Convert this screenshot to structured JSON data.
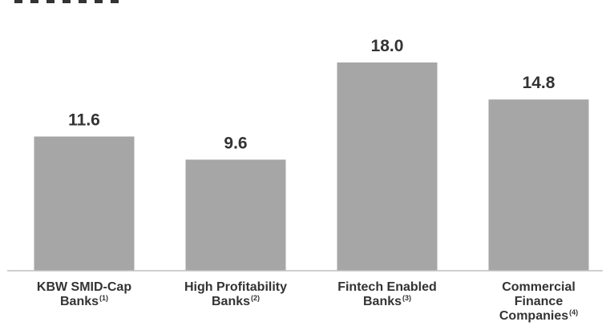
{
  "chart_data": {
    "type": "bar",
    "categories": [
      {
        "lines": [
          "KBW SMID-Cap",
          "Banks"
        ],
        "note": "(1)"
      },
      {
        "lines": [
          "High Profitability",
          "Banks"
        ],
        "note": "(2)"
      },
      {
        "lines": [
          "Fintech Enabled",
          "Banks"
        ],
        "note": "(3)"
      },
      {
        "lines": [
          "Commercial",
          "Finance",
          "Companies"
        ],
        "note": "(4)"
      }
    ],
    "values": [
      11.6,
      9.6,
      18.0,
      14.8
    ],
    "data_labels": [
      "11.6",
      "9.6",
      "18.0",
      "14.8"
    ],
    "ylim": [
      0,
      23.4
    ],
    "bar_color": "#a6a6a6",
    "label_color": "#333333",
    "axis_color": "#bfbfbf",
    "grid": false
  }
}
